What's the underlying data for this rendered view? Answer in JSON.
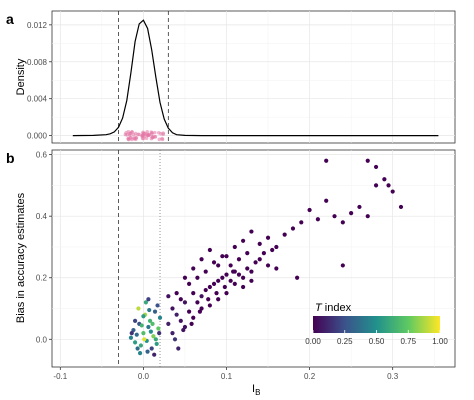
{
  "panel_labels": {
    "a": "a",
    "b": "b"
  },
  "chart_data": [
    {
      "panel": "a",
      "type": "line",
      "ylabel": "Density",
      "xlim": [
        -0.11,
        0.375
      ],
      "ylim": [
        -0.0008,
        0.0135
      ],
      "x_ticks": [],
      "y_ticks": [
        "0.000",
        "0.004",
        "0.008",
        "0.012"
      ],
      "y_tick_values": [
        0,
        0.004,
        0.008,
        0.012
      ],
      "vlines_dashed": [
        -0.03,
        0.03
      ],
      "density": {
        "x": [
          -0.085,
          -0.06,
          -0.045,
          -0.04,
          -0.035,
          -0.03,
          -0.025,
          -0.02,
          -0.015,
          -0.01,
          -0.005,
          0.0,
          0.005,
          0.01,
          0.015,
          0.02,
          0.025,
          0.03,
          0.035,
          0.04,
          0.05,
          0.07,
          0.1,
          0.2,
          0.3,
          0.355
        ],
        "y": [
          0.0,
          2e-05,
          0.0001,
          0.0002,
          0.0004,
          0.0009,
          0.0019,
          0.0038,
          0.0068,
          0.0102,
          0.0121,
          0.0125,
          0.0116,
          0.0093,
          0.0063,
          0.0036,
          0.0018,
          0.0008,
          0.0003,
          0.0001,
          2e-05,
          0.0,
          0.0,
          0.0,
          0.0,
          0.0
        ]
      },
      "points_color": "#e377a6"
    },
    {
      "panel": "b",
      "type": "scatter",
      "xlabel": "I",
      "xlabel_sub": "B",
      "ylabel": "Bias in accuracy estimates",
      "xlim": [
        -0.11,
        0.375
      ],
      "ylim": [
        -0.09,
        0.615
      ],
      "x_ticks": [
        "-0.1",
        "0.0",
        "0.1",
        "0.2",
        "0.3"
      ],
      "x_tick_values": [
        -0.1,
        0.0,
        0.1,
        0.2,
        0.3
      ],
      "y_ticks": [
        "0.0",
        "0.2",
        "0.4",
        "0.6"
      ],
      "y_tick_values": [
        0.0,
        0.2,
        0.4,
        0.6
      ],
      "vlines_dashed": [
        -0.03
      ],
      "vlines_dotted": [
        0.02
      ],
      "legend": {
        "title_italic": "T",
        "title_rest": " index",
        "ticks": [
          "0.00",
          "0.25",
          "0.50",
          "0.75",
          "1.00"
        ],
        "tick_values": [
          0,
          0.25,
          0.5,
          0.75,
          1.0
        ],
        "placement": "bottom-right",
        "colors": [
          "#440154",
          "#3b528b",
          "#21918c",
          "#5ec962",
          "#fde725"
        ]
      },
      "series": [
        {
          "name": "",
          "points": [
            [
              -0.015,
              0.005,
              0.45
            ],
            [
              -0.012,
              0.03,
              0.3
            ],
            [
              -0.01,
              -0.01,
              0.55
            ],
            [
              -0.008,
              0.015,
              0.35
            ],
            [
              -0.005,
              0.05,
              0.25
            ],
            [
              -0.003,
              -0.02,
              0.6
            ],
            [
              0.0,
              0.02,
              0.7
            ],
            [
              0.002,
              0.08,
              0.85
            ],
            [
              0.004,
              -0.005,
              0.5
            ],
            [
              0.006,
              0.04,
              0.4
            ],
            [
              0.008,
              0.06,
              0.65
            ],
            [
              0.01,
              -0.03,
              0.2
            ],
            [
              0.012,
              0.01,
              0.8
            ],
            [
              0.014,
              0.09,
              0.3
            ],
            [
              0.016,
              -0.015,
              0.55
            ],
            [
              0.018,
              0.035,
              0.75
            ],
            [
              0.02,
              0.07,
              0.45
            ],
            [
              -0.01,
              0.06,
              0.2
            ],
            [
              -0.006,
              0.1,
              0.9
            ],
            [
              0.003,
              0.12,
              0.6
            ],
            [
              -0.014,
              0.02,
              0.15
            ],
            [
              -0.007,
              -0.03,
              0.35
            ],
            [
              0.001,
              0.0,
              0.95
            ],
            [
              0.009,
              0.025,
              0.5
            ],
            [
              0.013,
              -0.05,
              0.1
            ],
            [
              0.017,
              0.11,
              0.25
            ],
            [
              0.005,
              -0.04,
              0.3
            ],
            [
              -0.002,
              0.045,
              0.65
            ],
            [
              0.011,
              0.05,
              0.7
            ],
            [
              0.007,
              0.095,
              0.4
            ],
            [
              0.015,
              0.0,
              0.6
            ],
            [
              0.019,
              0.02,
              0.15
            ],
            [
              -0.004,
              -0.045,
              0.45
            ],
            [
              0.006,
              0.13,
              0.2
            ],
            [
              0.0,
              0.075,
              0.55
            ],
            [
              0.03,
              0.05,
              0.1
            ],
            [
              0.035,
              0.1,
              0.05
            ],
            [
              0.04,
              0.08,
              0.1
            ],
            [
              0.045,
              0.13,
              0.0
            ],
            [
              0.05,
              0.12,
              0.05
            ],
            [
              0.055,
              0.18,
              0.0
            ],
            [
              0.06,
              0.15,
              0.0
            ],
            [
              0.065,
              0.2,
              0.0
            ],
            [
              0.07,
              0.14,
              0.05
            ],
            [
              0.075,
              0.22,
              0.0
            ],
            [
              0.08,
              0.17,
              0.0
            ],
            [
              0.085,
              0.25,
              0.0
            ],
            [
              0.09,
              0.19,
              0.0
            ],
            [
              0.095,
              0.27,
              0.0
            ],
            [
              0.1,
              0.21,
              0.0
            ],
            [
              0.105,
              0.24,
              0.0
            ],
            [
              0.11,
              0.3,
              0.0
            ],
            [
              0.115,
              0.26,
              0.0
            ],
            [
              0.12,
              0.32,
              0.0
            ],
            [
              0.125,
              0.28,
              0.0
            ],
            [
              0.13,
              0.35,
              0.0
            ],
            [
              0.14,
              0.31,
              0.0
            ],
            [
              0.15,
              0.33,
              0.0
            ],
            [
              0.16,
              0.3,
              0.0
            ],
            [
              0.17,
              0.34,
              0.0
            ],
            [
              0.18,
              0.36,
              0.0
            ],
            [
              0.19,
              0.38,
              0.0
            ],
            [
              0.2,
              0.42,
              0.0
            ],
            [
              0.21,
              0.39,
              0.0
            ],
            [
              0.22,
              0.45,
              0.0
            ],
            [
              0.23,
              0.4,
              0.0
            ],
            [
              0.24,
              0.38,
              0.0
            ],
            [
              0.25,
              0.41,
              0.0
            ],
            [
              0.26,
              0.43,
              0.0
            ],
            [
              0.27,
              0.4,
              0.0
            ],
            [
              0.28,
              0.5,
              0.0
            ],
            [
              0.29,
              0.52,
              0.0
            ],
            [
              0.3,
              0.48,
              0.0
            ],
            [
              0.31,
              0.43,
              0.0
            ],
            [
              0.22,
              0.58,
              0.0
            ],
            [
              0.27,
              0.58,
              0.0
            ],
            [
              0.28,
              0.56,
              0.0
            ],
            [
              0.295,
              0.5,
              0.0
            ],
            [
              0.24,
              0.24,
              0.0
            ],
            [
              0.185,
              0.2,
              0.0
            ],
            [
              0.05,
              0.04,
              0.05
            ],
            [
              0.06,
              0.07,
              0.0
            ],
            [
              0.07,
              0.1,
              0.0
            ],
            [
              0.08,
              0.11,
              0.0
            ],
            [
              0.09,
              0.13,
              0.0
            ],
            [
              0.1,
              0.15,
              0.0
            ],
            [
              0.11,
              0.18,
              0.0
            ],
            [
              0.12,
              0.2,
              0.0
            ],
            [
              0.13,
              0.22,
              0.0
            ],
            [
              0.14,
              0.26,
              0.0
            ],
            [
              0.15,
              0.24,
              0.0
            ],
            [
              0.16,
              0.23,
              0.0
            ],
            [
              0.035,
              0.02,
              0.1
            ],
            [
              0.045,
              0.06,
              0.05
            ],
            [
              0.055,
              0.09,
              0.0
            ],
            [
              0.065,
              0.12,
              0.0
            ],
            [
              0.075,
              0.16,
              0.0
            ],
            [
              0.085,
              0.18,
              0.0
            ],
            [
              0.095,
              0.2,
              0.0
            ],
            [
              0.105,
              0.19,
              0.0
            ],
            [
              0.115,
              0.21,
              0.0
            ],
            [
              0.125,
              0.23,
              0.0
            ],
            [
              0.135,
              0.25,
              0.0
            ],
            [
              0.145,
              0.28,
              0.0
            ],
            [
              0.155,
              0.29,
              0.0
            ],
            [
              0.04,
              0.15,
              0.0
            ],
            [
              0.05,
              0.2,
              0.0
            ],
            [
              0.06,
              0.23,
              0.0
            ],
            [
              0.07,
              0.26,
              0.0
            ],
            [
              0.08,
              0.29,
              0.0
            ],
            [
              0.09,
              0.24,
              0.0
            ],
            [
              0.1,
              0.27,
              0.0
            ],
            [
              0.11,
              0.22,
              0.0
            ],
            [
              0.12,
              0.17,
              0.0
            ],
            [
              0.13,
              0.19,
              0.0
            ],
            [
              0.03,
              0.14,
              0.05
            ],
            [
              0.038,
              0.0,
              0.15
            ],
            [
              0.042,
              -0.03,
              0.1
            ],
            [
              0.048,
              0.03,
              0.05
            ],
            [
              0.058,
              0.05,
              0.0
            ],
            [
              0.068,
              0.09,
              0.0
            ],
            [
              0.078,
              0.13,
              0.0
            ],
            [
              0.088,
              0.15,
              0.0
            ],
            [
              0.098,
              0.17,
              0.0
            ],
            [
              0.108,
              0.22,
              0.0
            ]
          ]
        }
      ]
    }
  ]
}
